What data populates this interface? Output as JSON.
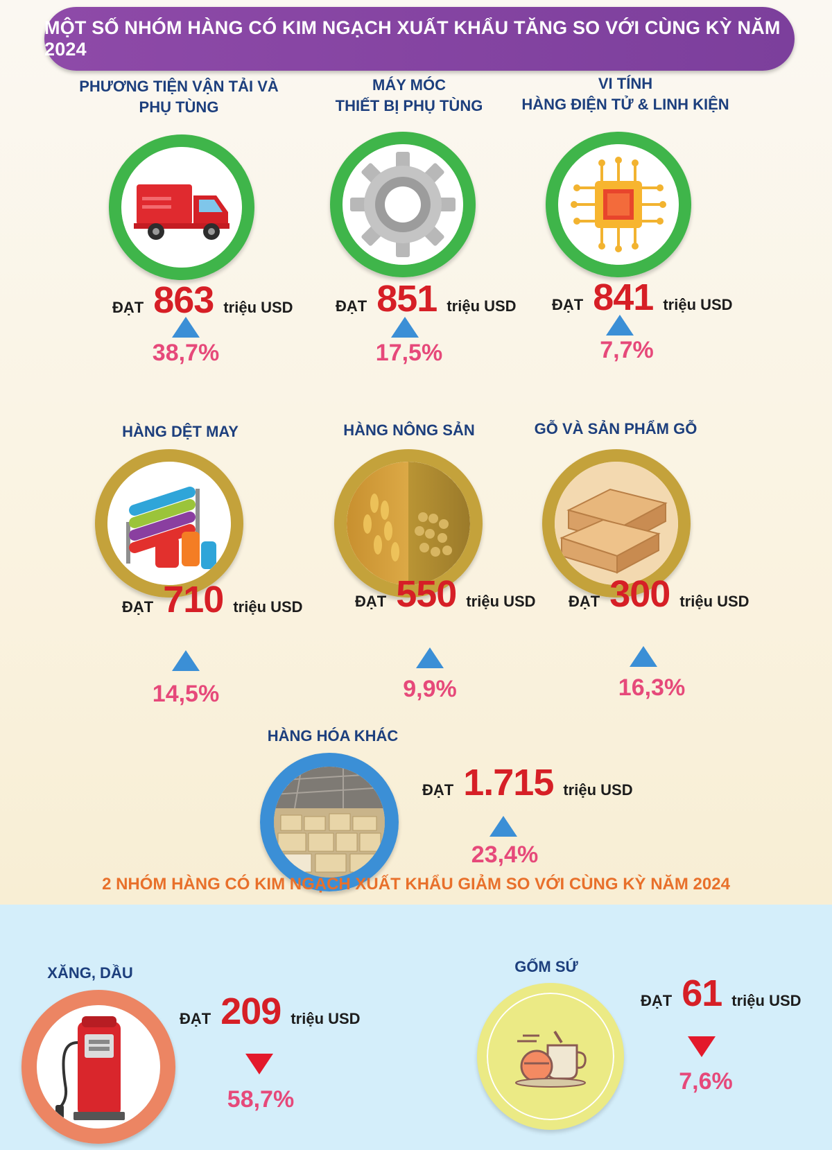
{
  "header": {
    "title": "MỘT SỐ NHÓM HÀNG CÓ KIM NGẠCH XUẤT KHẨU TĂNG SO VỚI CÙNG KỲ NĂM 2024"
  },
  "common": {
    "prefix": "ĐẠT",
    "unit": "triệu USD"
  },
  "increase_items": [
    {
      "title_line1": "PHƯƠNG TIỆN VẬN TẢI VÀ",
      "title_line2": "PHỤ TÙNG",
      "value": "863",
      "change": "38,7%",
      "icon": "truck-icon"
    },
    {
      "title_line1": "MÁY MÓC",
      "title_line2": "THIẾT BỊ PHỤ TÙNG",
      "value": "851",
      "change": "17,5%",
      "icon": "gear-icon"
    },
    {
      "title_line1": "VI TÍNH",
      "title_line2": "HÀNG ĐIỆN TỬ & LINH KIỆN",
      "value": "841",
      "change": "7,7%",
      "icon": "chip-icon"
    },
    {
      "title_line1": "HÀNG DỆT MAY",
      "title_line2": "",
      "value": "710",
      "change": "14,5%",
      "icon": "thread-spools-icon"
    },
    {
      "title_line1": "HÀNG NÔNG SẢN",
      "title_line2": "",
      "value": "550",
      "change": "9,9%",
      "icon": "grain-icon"
    },
    {
      "title_line1": "GỖ VÀ SẢN PHẨM GỖ",
      "title_line2": "",
      "value": "300",
      "change": "16,3%",
      "icon": "wood-planks-icon"
    },
    {
      "title_line1": "HÀNG HÓA KHÁC",
      "title_line2": "",
      "value": "1.715",
      "change": "23,4%",
      "icon": "warehouse-icon"
    }
  ],
  "decrease_section": {
    "title": "2 NHÓM HÀNG CÓ KIM NGẠCH XUẤT KHẨU GIẢM SO VỚI CÙNG KỲ NĂM 2024",
    "items": [
      {
        "title": "XĂNG, DẦU",
        "value": "209",
        "change": "58,7%",
        "icon": "fuel-pump-icon"
      },
      {
        "title": "GỐM SỨ",
        "value": "61",
        "change": "7,6%",
        "icon": "ceramics-icon"
      }
    ]
  },
  "colors": {
    "banner": "#8e4aa8",
    "value_red": "#d61f26",
    "pct_pink": "#e6497a",
    "arrow_up": "#3b8fd6",
    "arrow_down": "#e3192b",
    "ring_green": "#3fb54a",
    "ring_gold": "#c4a23b",
    "ring_blue": "#3b8fd6",
    "ring_orange": "#ec8563",
    "ring_yellow": "#ebea85",
    "section2_title": "#e8702b",
    "title_blue": "#1d3f7d"
  }
}
